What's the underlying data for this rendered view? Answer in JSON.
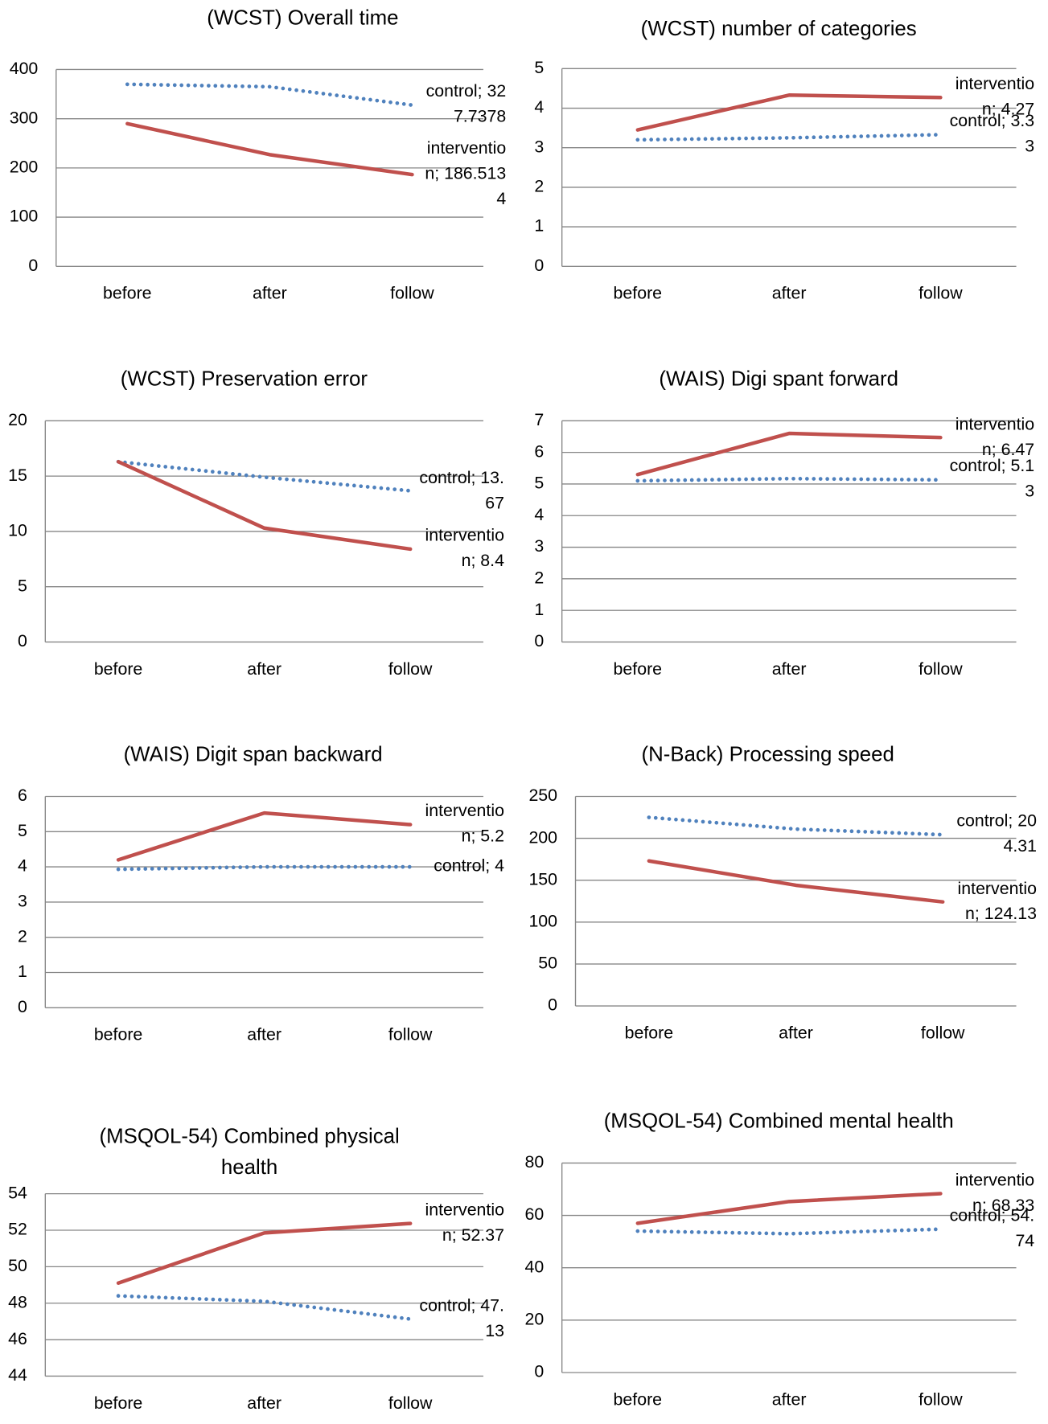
{
  "chart_data": [
    {
      "type": "line",
      "title": "(WCST) Overall time",
      "categories": [
        "before",
        "after",
        "follow"
      ],
      "ylim": [
        0,
        400
      ],
      "yticks": [
        0,
        100,
        200,
        300,
        400
      ],
      "grid": true,
      "series": [
        {
          "name": "control",
          "color": "#4f81bd",
          "style": "dotted",
          "values": [
            370,
            365,
            327.7378
          ],
          "value_labels": [
            null,
            null,
            "control; 327.7378"
          ]
        },
        {
          "name": "intervention",
          "color": "#c0504d",
          "style": "solid",
          "values": [
            290,
            227,
            186.5134
          ],
          "value_labels": [
            null,
            null,
            "intervention; 186.5134"
          ]
        }
      ]
    },
    {
      "type": "line",
      "title": "(WCST) number of categories",
      "categories": [
        "before",
        "after",
        "follow"
      ],
      "ylim": [
        0,
        5
      ],
      "yticks": [
        0,
        1,
        2,
        3,
        4,
        5
      ],
      "grid": true,
      "series": [
        {
          "name": "control",
          "color": "#4f81bd",
          "style": "dotted",
          "values": [
            3.2,
            3.25,
            3.33
          ],
          "value_labels": [
            null,
            null,
            "control; 3.33"
          ]
        },
        {
          "name": "intervention",
          "color": "#c0504d",
          "style": "solid",
          "values": [
            3.45,
            4.33,
            4.27
          ],
          "value_labels": [
            null,
            null,
            "intervention; 4.27"
          ]
        }
      ]
    },
    {
      "type": "line",
      "title": "(WCST) Preservation error",
      "categories": [
        "before",
        "after",
        "follow"
      ],
      "ylim": [
        0,
        20
      ],
      "yticks": [
        0,
        5,
        10,
        15,
        20
      ],
      "grid": true,
      "series": [
        {
          "name": "control",
          "color": "#4f81bd",
          "style": "dotted",
          "values": [
            16.3,
            14.9,
            13.67
          ],
          "value_labels": [
            null,
            null,
            "control; 13.67"
          ]
        },
        {
          "name": "intervention",
          "color": "#c0504d",
          "style": "solid",
          "values": [
            16.3,
            10.3,
            8.4
          ],
          "value_labels": [
            null,
            null,
            "intervention; 8.4"
          ]
        }
      ]
    },
    {
      "type": "line",
      "title": "(WAIS) Digi spant forward",
      "categories": [
        "before",
        "after",
        "follow"
      ],
      "ylim": [
        0,
        7
      ],
      "yticks": [
        0,
        1,
        2,
        3,
        4,
        5,
        6,
        7
      ],
      "grid": true,
      "series": [
        {
          "name": "control",
          "color": "#4f81bd",
          "style": "dotted",
          "values": [
            5.1,
            5.17,
            5.13
          ],
          "value_labels": [
            null,
            null,
            "control; 5.13"
          ]
        },
        {
          "name": "intervention",
          "color": "#c0504d",
          "style": "solid",
          "values": [
            5.3,
            6.6,
            6.47
          ],
          "value_labels": [
            null,
            null,
            "intervention; 6.47"
          ]
        }
      ]
    },
    {
      "type": "line",
      "title": "(WAIS) Digit span backward",
      "categories": [
        "before",
        "after",
        "follow"
      ],
      "ylim": [
        0,
        6
      ],
      "yticks": [
        0,
        1,
        2,
        3,
        4,
        5,
        6
      ],
      "grid": true,
      "series": [
        {
          "name": "control",
          "color": "#4f81bd",
          "style": "dotted",
          "values": [
            3.93,
            4,
            4
          ],
          "value_labels": [
            null,
            null,
            "control; 4"
          ]
        },
        {
          "name": "intervention",
          "color": "#c0504d",
          "style": "solid",
          "values": [
            4.2,
            5.53,
            5.2
          ],
          "value_labels": [
            null,
            null,
            "intervention; 5.2"
          ]
        }
      ]
    },
    {
      "type": "line",
      "title": "(N-Back) Processing speed",
      "categories": [
        "before",
        "after",
        "follow"
      ],
      "ylim": [
        0,
        250
      ],
      "yticks": [
        0,
        50,
        100,
        150,
        200,
        250
      ],
      "grid": true,
      "series": [
        {
          "name": "control",
          "color": "#4f81bd",
          "style": "dotted",
          "values": [
            225,
            211,
            204.31
          ],
          "value_labels": [
            null,
            null,
            "control; 204.31"
          ]
        },
        {
          "name": "intervention",
          "color": "#c0504d",
          "style": "solid",
          "values": [
            173,
            144,
            124.13
          ],
          "value_labels": [
            null,
            null,
            "intervention; 124.13"
          ]
        }
      ]
    },
    {
      "type": "line",
      "title": "(MSQOL-54) Combined physical health",
      "categories": [
        "before",
        "after",
        "follow"
      ],
      "ylim": [
        44,
        54
      ],
      "yticks": [
        44,
        46,
        48,
        50,
        52,
        54
      ],
      "grid": true,
      "series": [
        {
          "name": "control",
          "color": "#4f81bd",
          "style": "dotted",
          "values": [
            48.4,
            48.1,
            47.13
          ],
          "value_labels": [
            null,
            null,
            "control; 47.13"
          ]
        },
        {
          "name": "intervention",
          "color": "#c0504d",
          "style": "solid",
          "values": [
            49.1,
            51.85,
            52.37
          ],
          "value_labels": [
            null,
            null,
            "intervention; 52.37"
          ]
        }
      ]
    },
    {
      "type": "line",
      "title": "(MSQOL-54) Combined mental health",
      "categories": [
        "before",
        "after",
        "follow"
      ],
      "ylim": [
        0,
        80
      ],
      "yticks": [
        0,
        20,
        40,
        60,
        80
      ],
      "grid": true,
      "series": [
        {
          "name": "control",
          "color": "#4f81bd",
          "style": "dotted",
          "values": [
            54,
            53,
            54.74
          ],
          "value_labels": [
            null,
            null,
            "control; 54.74"
          ]
        },
        {
          "name": "intervention",
          "color": "#c0504d",
          "style": "solid",
          "values": [
            57,
            65.3,
            68.33
          ],
          "value_labels": [
            null,
            null,
            "intervention; 68.33"
          ]
        }
      ]
    }
  ]
}
